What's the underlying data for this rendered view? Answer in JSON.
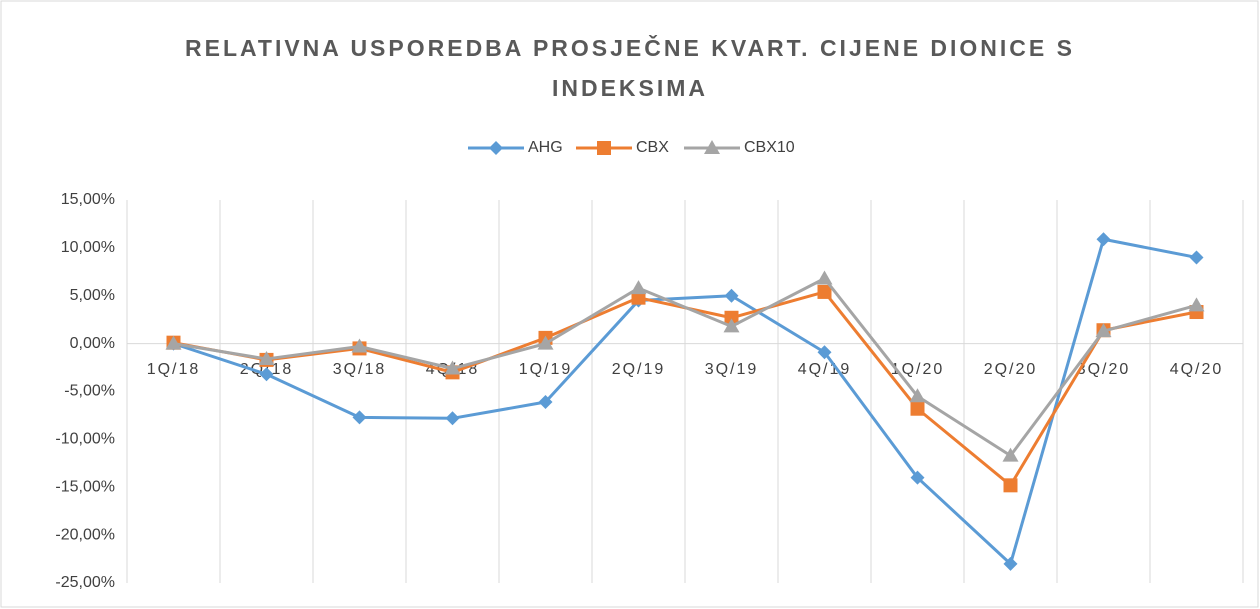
{
  "chart_data": {
    "type": "line",
    "title": "RELATIVNA USPOREDBA PROSJEČNE KVART. CIJENE DIONICE S INDEKSIMA",
    "categories": [
      "1Q/18",
      "2Q/18",
      "3Q/18",
      "4Q/18",
      "1Q/19",
      "2Q/19",
      "3Q/19",
      "4Q/19",
      "1Q/20",
      "2Q/20",
      "3Q/20",
      "4Q/20"
    ],
    "series": [
      {
        "name": "AHG",
        "color": "#5b9bd5",
        "marker": "diamond",
        "values": [
          0,
          -3.2,
          -7.7,
          -7.8,
          -6.1,
          4.5,
          5.0,
          -0.9,
          -14.0,
          -23.0,
          10.9,
          9.0
        ]
      },
      {
        "name": "CBX",
        "color": "#ed7d31",
        "marker": "square",
        "values": [
          0.1,
          -1.7,
          -0.5,
          -3.0,
          0.6,
          4.8,
          2.7,
          5.4,
          -6.8,
          -14.8,
          1.4,
          3.3
        ]
      },
      {
        "name": "CBX10",
        "color": "#a5a5a5",
        "marker": "triangle",
        "values": [
          0,
          -1.6,
          -0.3,
          -2.6,
          0,
          5.8,
          1.8,
          6.8,
          -5.5,
          -11.7,
          1.3,
          4.0
        ]
      }
    ],
    "ylim": [
      -25,
      15
    ],
    "yticks": [
      {
        "value": -25,
        "label": "-25,00%"
      },
      {
        "value": -20,
        "label": "-20,00%"
      },
      {
        "value": -15,
        "label": "-15,00%"
      },
      {
        "value": -10,
        "label": "-10,00%"
      },
      {
        "value": -5,
        "label": "-5,00%"
      },
      {
        "value": 0,
        "label": "0,00%"
      },
      {
        "value": 5,
        "label": "5,00%"
      },
      {
        "value": 10,
        "label": "10,00%"
      },
      {
        "value": 15,
        "label": "15,00%"
      }
    ],
    "legend": "top",
    "grid": "vertical"
  }
}
